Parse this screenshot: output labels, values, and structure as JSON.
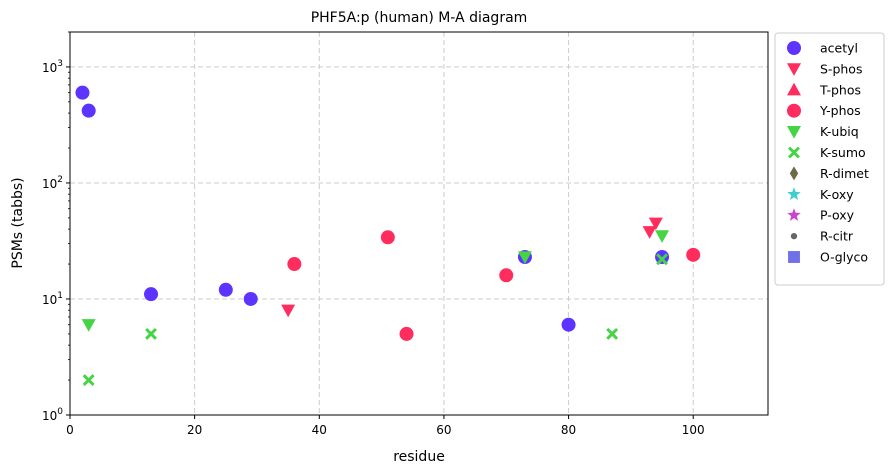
{
  "chart_data": {
    "type": "scatter",
    "title": "PHF5A:p (human) M-A diagram",
    "xlabel": "residue",
    "ylabel": "PSMs (tabbs)",
    "xlim": [
      0,
      112
    ],
    "ylim": [
      1,
      2000
    ],
    "yscale": "log",
    "grid": true,
    "legend_position": "outside-right",
    "x_ticks": [
      0,
      20,
      40,
      60,
      80,
      100
    ],
    "y_ticks": [
      {
        "value": 1,
        "base": "10",
        "exp": "0"
      },
      {
        "value": 10,
        "base": "10",
        "exp": "1"
      },
      {
        "value": 100,
        "base": "10",
        "exp": "2"
      },
      {
        "value": 1000,
        "base": "10",
        "exp": "3"
      }
    ],
    "series": [
      {
        "name": "acetyl",
        "marker": "circle",
        "color": "#5c33ff",
        "points": [
          [
            2,
            600
          ],
          [
            3,
            420
          ],
          [
            13,
            11
          ],
          [
            25,
            12
          ],
          [
            29,
            10
          ],
          [
            73,
            23
          ],
          [
            80,
            6
          ],
          [
            95,
            23
          ]
        ]
      },
      {
        "name": "S-phos",
        "marker": "triangle-down",
        "color": "#ff2d5e",
        "points": [
          [
            35,
            8
          ],
          [
            93,
            38
          ],
          [
            94,
            45
          ]
        ]
      },
      {
        "name": "T-phos",
        "marker": "triangle-up",
        "color": "#ff2d5e",
        "points": []
      },
      {
        "name": "Y-phos",
        "marker": "circle",
        "color": "#ff2d5e",
        "points": [
          [
            36,
            20
          ],
          [
            51,
            34
          ],
          [
            54,
            5
          ],
          [
            70,
            16
          ],
          [
            100,
            24
          ]
        ]
      },
      {
        "name": "K-ubiq",
        "marker": "triangle-down",
        "color": "#44d444",
        "points": [
          [
            3,
            6
          ],
          [
            73,
            23
          ],
          [
            95,
            35
          ]
        ]
      },
      {
        "name": "K-sumo",
        "marker": "x-filled",
        "color": "#44d444",
        "points": [
          [
            3,
            2
          ],
          [
            13,
            5
          ],
          [
            87,
            5
          ],
          [
            95,
            22
          ]
        ]
      },
      {
        "name": "R-dimet",
        "marker": "diamond",
        "color": "#6b6b47",
        "points": []
      },
      {
        "name": "K-oxy",
        "marker": "star",
        "color": "#3fcfcf",
        "points": []
      },
      {
        "name": "P-oxy",
        "marker": "star",
        "color": "#cc44cc",
        "points": []
      },
      {
        "name": "R-citr",
        "marker": "dot",
        "color": "#666666",
        "points": []
      },
      {
        "name": "O-glyco",
        "marker": "square",
        "color": "#7070e8",
        "points": []
      }
    ]
  }
}
